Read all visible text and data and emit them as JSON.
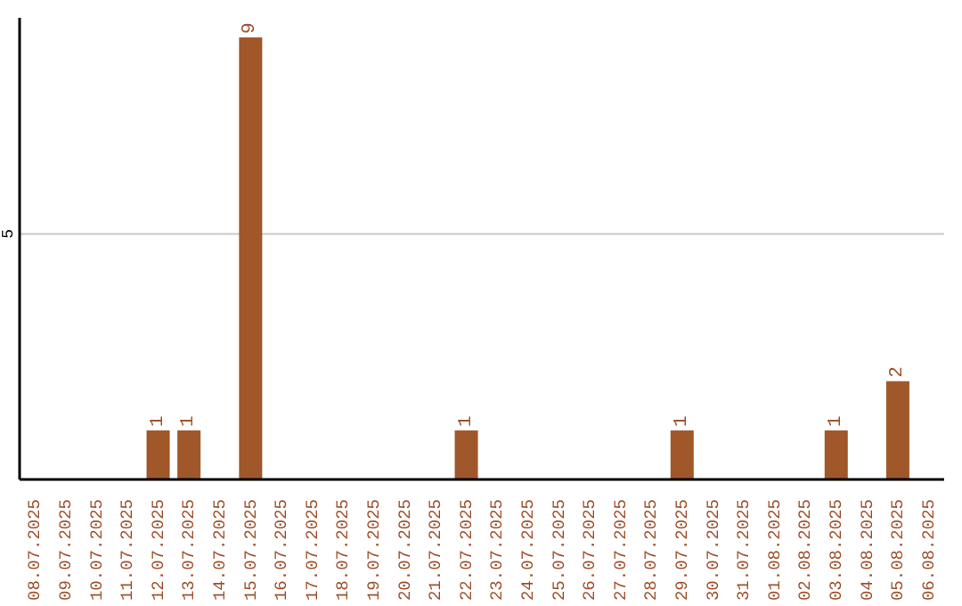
{
  "chart_data": {
    "type": "bar",
    "categories": [
      "08.07.2025",
      "09.07.2025",
      "10.07.2025",
      "11.07.2025",
      "12.07.2025",
      "13.07.2025",
      "14.07.2025",
      "15.07.2025",
      "16.07.2025",
      "17.07.2025",
      "18.07.2025",
      "19.07.2025",
      "20.07.2025",
      "21.07.2025",
      "22.07.2025",
      "23.07.2025",
      "24.07.2025",
      "25.07.2025",
      "26.07.2025",
      "27.07.2025",
      "28.07.2025",
      "29.07.2025",
      "30.07.2025",
      "31.07.2025",
      "01.08.2025",
      "02.08.2025",
      "03.08.2025",
      "04.08.2025",
      "05.08.2025",
      "06.08.2025"
    ],
    "values": [
      0,
      0,
      0,
      0,
      1,
      1,
      0,
      9,
      0,
      0,
      0,
      0,
      0,
      0,
      1,
      0,
      0,
      0,
      0,
      0,
      0,
      1,
      0,
      0,
      0,
      0,
      1,
      0,
      2,
      0
    ],
    "value_labels": [
      null,
      null,
      null,
      null,
      "1",
      "1",
      null,
      "9",
      null,
      null,
      null,
      null,
      null,
      null,
      "1",
      null,
      null,
      null,
      null,
      null,
      null,
      "1",
      null,
      null,
      null,
      null,
      "1",
      null,
      "2",
      null
    ],
    "color": "#a0572a",
    "ylim": [
      0,
      9.4
    ],
    "yticks": [
      5
    ],
    "grid": "y"
  }
}
